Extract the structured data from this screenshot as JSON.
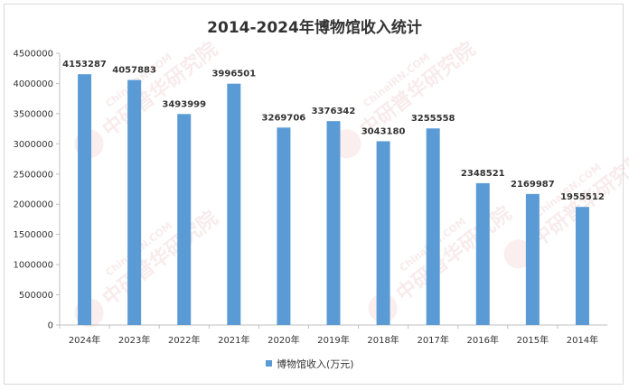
{
  "chart_data": {
    "type": "bar",
    "title": "2014-2024年博物馆收入统计",
    "xlabel": "",
    "ylabel": "",
    "categories": [
      "2024年",
      "2023年",
      "2022年",
      "2021年",
      "2020年",
      "2019年",
      "2018年",
      "2017年",
      "2016年",
      "2015年",
      "2014年"
    ],
    "series": [
      {
        "name": "博物馆收入(万元)",
        "values": [
          4153287,
          4057883,
          3493999,
          3996501,
          3269706,
          3376342,
          3043180,
          3255558,
          2348521,
          2169987,
          1955512
        ]
      }
    ],
    "ylim": [
      0,
      4500000
    ],
    "yticks": [
      0,
      500000,
      1000000,
      1500000,
      2000000,
      2500000,
      3000000,
      3500000,
      4000000,
      4500000
    ],
    "grid": false,
    "legend_position": "bottom",
    "data_labels": true,
    "bar_color": "#5b9bd5"
  },
  "watermark": {
    "brand": "中研普华研究院",
    "url": "ChinaIRN.COM",
    "logo_text": "IRN"
  }
}
